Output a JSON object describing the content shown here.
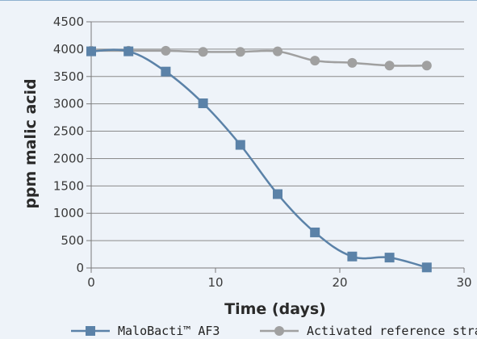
{
  "chart_data": {
    "type": "line",
    "title": "",
    "xlabel": "Time (days)",
    "ylabel": "ppm malic acid",
    "xlim": [
      0,
      30
    ],
    "ylim": [
      0,
      4500
    ],
    "x_ticks": [
      0,
      10,
      20,
      30
    ],
    "y_ticks": [
      0,
      500,
      1000,
      1500,
      2000,
      2500,
      3000,
      3500,
      4000,
      4500
    ],
    "grid": "horizontal",
    "legend_position": "bottom",
    "series": [
      {
        "name": "MaloBacti™ AF3",
        "color": "#5b82a8",
        "marker": "square",
        "x": [
          0,
          3,
          6,
          9,
          12,
          15,
          18,
          21,
          24,
          27
        ],
        "y": [
          3960,
          3960,
          3590,
          3010,
          2250,
          1350,
          650,
          210,
          190,
          10
        ]
      },
      {
        "name": "Activated reference strain",
        "color": "#a0a0a0",
        "marker": "circle",
        "x": [
          0,
          3,
          6,
          9,
          12,
          15,
          18,
          21,
          24,
          27
        ],
        "y": [
          3970,
          3970,
          3970,
          3950,
          3950,
          3960,
          3790,
          3750,
          3700,
          3700
        ]
      }
    ]
  }
}
